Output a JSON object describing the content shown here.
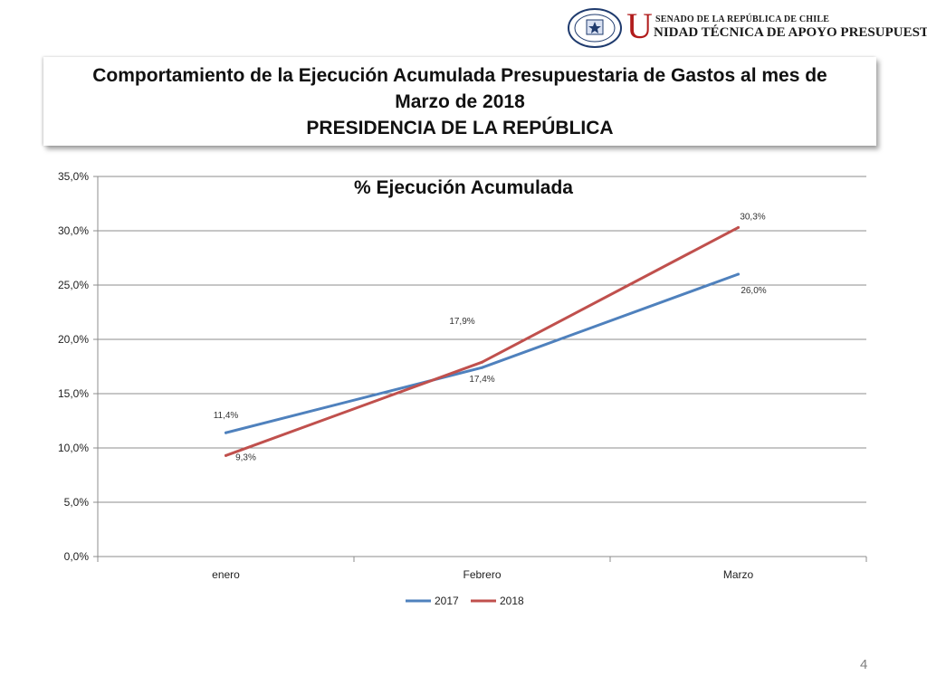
{
  "header": {
    "seal_text_top": "REPÚBLICA DE CHILE",
    "seal_text_bottom": "SENADO",
    "brand_initial": "U",
    "brand_top": "SENADO DE LA REPÚBLICA DE CHILE",
    "brand_bottom": "NIDAD TÉCNICA DE APOYO PRESUPUESTARIO"
  },
  "title": {
    "line1": "Comportamiento de la Ejecución Acumulada Presupuestaria de Gastos al mes de",
    "line2": "Marzo de 2018",
    "line3": "PRESIDENCIA DE LA REPÚBLICA"
  },
  "page_number": "4",
  "colors": {
    "series_2017": "#4f81bd",
    "series_2018": "#c0504d",
    "grid": "#8c8c8c"
  },
  "chart_data": {
    "type": "line",
    "title": "% Ejecución Acumulada",
    "categories": [
      "enero",
      "Febrero",
      "Marzo"
    ],
    "ylim": [
      0,
      35
    ],
    "yticks": [
      "0,0%",
      "5,0%",
      "10,0%",
      "15,0%",
      "20,0%",
      "25,0%",
      "30,0%",
      "35,0%"
    ],
    "ytick_values": [
      0,
      5,
      10,
      15,
      20,
      25,
      30,
      35
    ],
    "grid": true,
    "legend_position": "bottom",
    "series": [
      {
        "name": "2017",
        "values": [
          11.4,
          17.4,
          26.0
        ],
        "labels": [
          "11,4%",
          "17,4%",
          "26,0%"
        ]
      },
      {
        "name": "2018",
        "values": [
          9.3,
          17.9,
          30.3
        ],
        "labels": [
          "9,3%",
          "17,9%",
          "30,3%"
        ]
      }
    ]
  }
}
